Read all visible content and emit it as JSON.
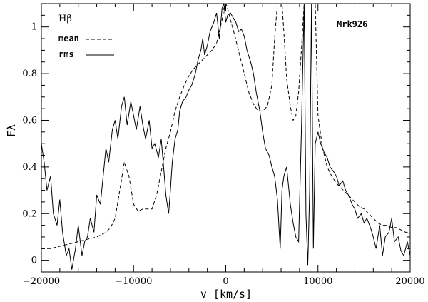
{
  "chart_data": {
    "type": "line",
    "title": "",
    "panel_label": "Hβ",
    "annotation": "Mrk926",
    "xlabel": "v [km/s]",
    "ylabel": "Fλ",
    "xlim": [
      -20000,
      20000
    ],
    "ylim": [
      -0.05,
      1.1
    ],
    "x_ticks": [
      -20000,
      -10000,
      0,
      10000,
      20000
    ],
    "x_tick_labels": [
      "−20000",
      "−10000",
      "0",
      "10000",
      "20000"
    ],
    "y_ticks": [
      0,
      0.2,
      0.4,
      0.6,
      0.8,
      1
    ],
    "y_tick_labels": [
      "0",
      "0.2",
      "0.4",
      "0.6",
      "0.8",
      "1"
    ],
    "grid": false,
    "legend_position": "top-left",
    "series": [
      {
        "name": "mean",
        "style": "dashed",
        "x": [
          -20000,
          -19000,
          -18000,
          -17000,
          -16000,
          -15000,
          -14000,
          -13000,
          -12500,
          -12000,
          -11500,
          -11000,
          -10500,
          -10000,
          -9500,
          -9000,
          -8500,
          -8000,
          -7500,
          -7000,
          -6500,
          -6000,
          -5500,
          -5000,
          -4500,
          -4000,
          -3500,
          -3000,
          -2500,
          -2000,
          -1500,
          -1000,
          -700,
          -400,
          -200,
          0,
          200,
          500,
          800,
          1000,
          1500,
          2000,
          2500,
          3000,
          3500,
          4000,
          4500,
          5000,
          5300,
          5600,
          5900,
          6100,
          6300,
          6600,
          7000,
          7300,
          7600,
          7900,
          8200,
          8500,
          8800,
          9100,
          9400,
          9700,
          10000,
          10500,
          11000,
          11500,
          12000,
          12500,
          13000,
          13500,
          14000,
          14500,
          15000,
          15500,
          16000,
          16500,
          17000,
          17500,
          18000,
          18500,
          19000,
          19500,
          20000
        ],
        "y": [
          0.05,
          0.05,
          0.06,
          0.07,
          0.08,
          0.09,
          0.1,
          0.12,
          0.14,
          0.18,
          0.3,
          0.42,
          0.36,
          0.24,
          0.21,
          0.22,
          0.22,
          0.22,
          0.28,
          0.38,
          0.48,
          0.55,
          0.64,
          0.7,
          0.75,
          0.79,
          0.82,
          0.84,
          0.86,
          0.88,
          0.9,
          0.93,
          0.98,
          1.03,
          1.08,
          1.1,
          1.08,
          1.03,
          0.99,
          0.96,
          0.88,
          0.8,
          0.72,
          0.67,
          0.64,
          0.64,
          0.66,
          0.75,
          0.95,
          1.1,
          1.1,
          1.1,
          0.98,
          0.78,
          0.66,
          0.6,
          0.62,
          0.72,
          0.9,
          1.1,
          1.1,
          1.1,
          1.1,
          1.1,
          0.62,
          0.48,
          0.4,
          0.36,
          0.33,
          0.31,
          0.29,
          0.27,
          0.25,
          0.23,
          0.22,
          0.2,
          0.18,
          0.16,
          0.15,
          0.15,
          0.14,
          0.14,
          0.13,
          0.12,
          0.12
        ]
      },
      {
        "name": "rms",
        "style": "solid",
        "x": [
          -20000,
          -19700,
          -19400,
          -19000,
          -18700,
          -18300,
          -18000,
          -17700,
          -17300,
          -17000,
          -16700,
          -16300,
          -16000,
          -15600,
          -15300,
          -15000,
          -14700,
          -14300,
          -14000,
          -13600,
          -13300,
          -13000,
          -12700,
          -12300,
          -12000,
          -11700,
          -11300,
          -11000,
          -10700,
          -10300,
          -10000,
          -9700,
          -9300,
          -9000,
          -8700,
          -8300,
          -8000,
          -7700,
          -7300,
          -7000,
          -6700,
          -6500,
          -6200,
          -6000,
          -5800,
          -5500,
          -5200,
          -5000,
          -4700,
          -4300,
          -4000,
          -3700,
          -3300,
          -3000,
          -2700,
          -2500,
          -2300,
          -2000,
          -1700,
          -1300,
          -1000,
          -700,
          -400,
          -200,
          0,
          200,
          500,
          800,
          1100,
          1400,
          1700,
          2000,
          2300,
          2700,
          3000,
          3300,
          3700,
          4000,
          4300,
          4700,
          5000,
          5300,
          5600,
          5900,
          6100,
          6300,
          6600,
          7000,
          7300,
          7600,
          7900,
          8200,
          8500,
          8700,
          8900,
          9100,
          9300,
          9500,
          9700,
          10000,
          10300,
          10700,
          11000,
          11300,
          11700,
          12000,
          12300,
          12700,
          13000,
          13300,
          13700,
          14000,
          14300,
          14700,
          15000,
          15300,
          15700,
          16000,
          16300,
          16700,
          17000,
          17300,
          17700,
          18000,
          18300,
          18700,
          19000,
          19300,
          19700,
          20000
        ],
        "y": [
          0.5,
          0.42,
          0.3,
          0.36,
          0.2,
          0.15,
          0.26,
          0.12,
          0.02,
          0.05,
          -0.04,
          0.05,
          0.15,
          0.02,
          0.08,
          0.1,
          0.18,
          0.12,
          0.28,
          0.24,
          0.36,
          0.48,
          0.42,
          0.56,
          0.6,
          0.52,
          0.66,
          0.7,
          0.58,
          0.68,
          0.62,
          0.56,
          0.66,
          0.58,
          0.52,
          0.6,
          0.48,
          0.5,
          0.44,
          0.52,
          0.38,
          0.28,
          0.2,
          0.3,
          0.42,
          0.52,
          0.56,
          0.64,
          0.68,
          0.7,
          0.73,
          0.75,
          0.8,
          0.86,
          0.9,
          0.95,
          0.88,
          0.92,
          0.98,
          1.02,
          1.06,
          0.95,
          1.08,
          1.1,
          1.02,
          1.05,
          1.06,
          1.04,
          1.02,
          0.98,
          0.99,
          0.96,
          0.9,
          0.85,
          0.8,
          0.72,
          0.64,
          0.55,
          0.48,
          0.45,
          0.4,
          0.36,
          0.26,
          0.05,
          0.3,
          0.36,
          0.4,
          0.24,
          0.16,
          0.1,
          0.08,
          0.55,
          1.1,
          0.2,
          -0.02,
          0.3,
          1.1,
          0.05,
          0.5,
          0.55,
          0.5,
          0.46,
          0.44,
          0.4,
          0.38,
          0.36,
          0.32,
          0.34,
          0.3,
          0.28,
          0.24,
          0.22,
          0.18,
          0.2,
          0.16,
          0.18,
          0.14,
          0.1,
          0.05,
          0.15,
          0.02,
          0.1,
          0.12,
          0.18,
          0.08,
          0.1,
          0.04,
          0.02,
          0.08,
          0.02
        ]
      }
    ]
  }
}
